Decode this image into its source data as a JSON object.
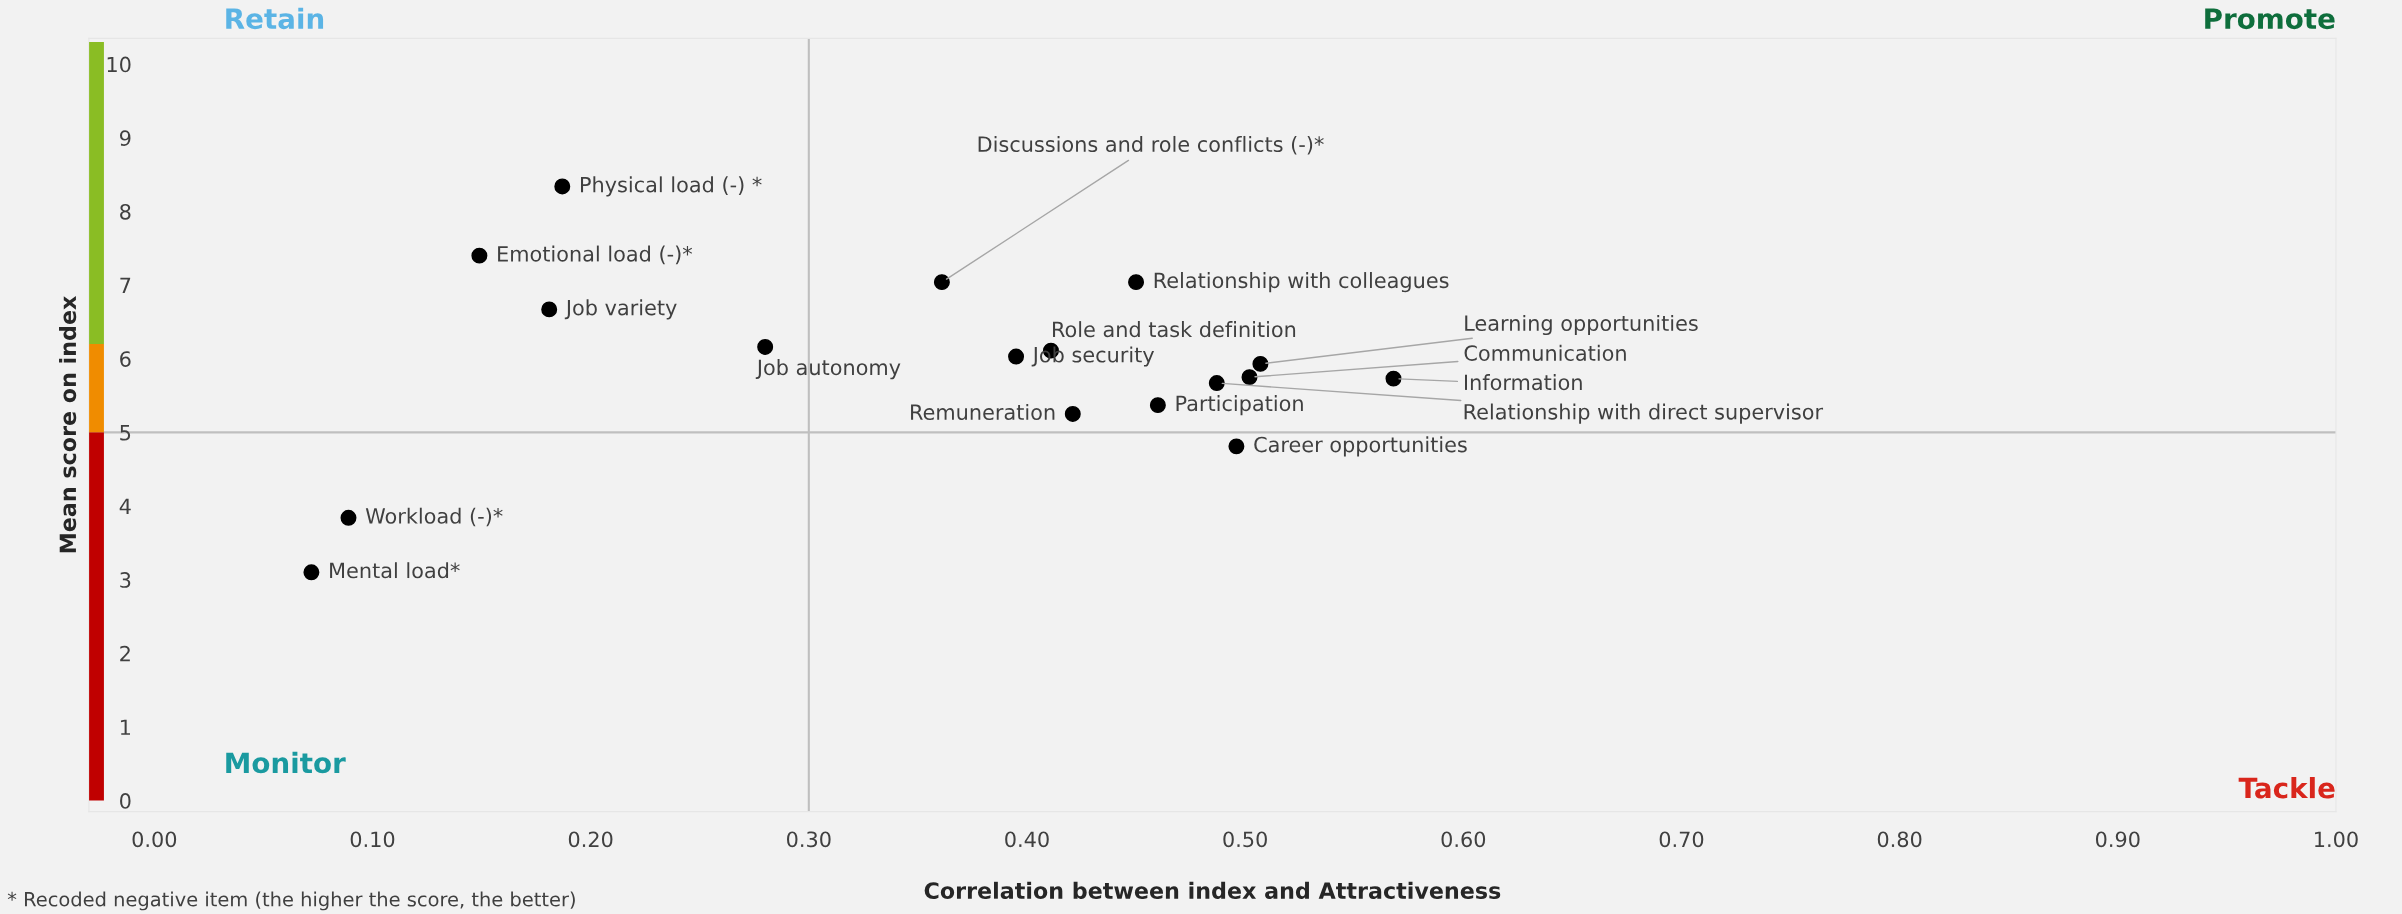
{
  "chart_data": {
    "type": "scatter",
    "xlabel": "Correlation between index and Attractiveness",
    "ylabel": "Mean score on index",
    "xlim": [
      -0.03,
      1.0
    ],
    "xticks": [
      {
        "value": 0,
        "label": "0.00"
      },
      {
        "value": 0.1,
        "label": "0.10"
      },
      {
        "value": 0.2,
        "label": "0.20"
      },
      {
        "value": 0.3,
        "label": "0.30"
      },
      {
        "value": 0.4,
        "label": "0.40"
      },
      {
        "value": 0.5,
        "label": "0.50"
      },
      {
        "value": 0.6,
        "label": "0.60"
      },
      {
        "value": 0.7,
        "label": "0.70"
      },
      {
        "value": 0.8,
        "label": "0.80"
      },
      {
        "value": 0.9,
        "label": "0.90"
      },
      {
        "value": 1.0,
        "label": "1.00"
      }
    ],
    "ylim": [
      -0.15,
      10.35
    ],
    "yticks": [
      0,
      1,
      2,
      3,
      4,
      5,
      6,
      7,
      8,
      9,
      10
    ],
    "series": [
      {
        "color": "#000000",
        "x": [
          0.187,
          0.149,
          0.181,
          0.28,
          0.361,
          0.45,
          0.395,
          0.411,
          0.421,
          0.46,
          0.496,
          0.507,
          0.502,
          0.487,
          0.568,
          0.089,
          0.072
        ],
        "values": [
          8.34,
          7.4,
          6.67,
          6.16,
          7.04,
          7.04,
          6.03,
          6.11,
          5.25,
          5.37,
          4.81,
          5.93,
          5.75,
          5.67,
          5.73,
          3.84,
          3.1
        ]
      },
      {
        "type": "bar",
        "color": "#c00000",
        "x": [
          -0.0265
        ],
        "values": [
          5
        ]
      },
      {
        "type": "bar",
        "color": "#f08c00",
        "x": [
          -0.0265
        ],
        "values": [
          1.2
        ]
      },
      {
        "type": "bar",
        "color": "#8abd24",
        "x": [
          -0.0265
        ],
        "values": [
          4.1
        ]
      }
    ],
    "marker": "circle",
    "grid": false,
    "legend": false,
    "ref_lines": [
      {
        "axis": "x",
        "value": 0.3,
        "color": "#bfbfbf"
      },
      {
        "axis": "y",
        "value": 5,
        "color": "#bfbfbf"
      }
    ],
    "stacked": true,
    "annotations": [
      {
        "text": "Physical load (-) *",
        "x": 0.187,
        "y": 8.34
      },
      {
        "text": "Emotional load (-)*",
        "x": 0.149,
        "y": 7.4
      },
      {
        "text": "Job variety",
        "x": 0.181,
        "y": 6.67
      },
      {
        "text": "Job autonomy",
        "x": 0.28,
        "y": 6.16
      },
      {
        "text": "Discussions and role conflicts (-)*",
        "x": 0.361,
        "y": 7.04
      },
      {
        "text": "Relationship with colleagues",
        "x": 0.45,
        "y": 7.04
      },
      {
        "text": "Job security",
        "x": 0.395,
        "y": 6.03
      },
      {
        "text": "Role and task definition",
        "x": 0.411,
        "y": 6.11
      },
      {
        "text": "Remuneration",
        "x": 0.421,
        "y": 5.25
      },
      {
        "text": "Participation",
        "x": 0.46,
        "y": 5.37
      },
      {
        "text": "Career opportunities",
        "x": 0.496,
        "y": 4.81
      },
      {
        "text": "Learning opportunities",
        "x": 0.507,
        "y": 5.93
      },
      {
        "text": "Communication",
        "x": 0.502,
        "y": 5.75
      },
      {
        "text": "Relationship with direct supervisor",
        "x": 0.487,
        "y": 5.67
      },
      {
        "text": "Information",
        "x": 0.568,
        "y": 5.73
      },
      {
        "text": "Workload (-)*",
        "x": 0.089,
        "y": 3.84
      },
      {
        "text": "Mental load*",
        "x": 0.072,
        "y": 3.1
      },
      "Retain",
      "Promote",
      "Monitor",
      "Tackle",
      "* Recoded negative item (the higher the score, the better)"
    ]
  }
}
